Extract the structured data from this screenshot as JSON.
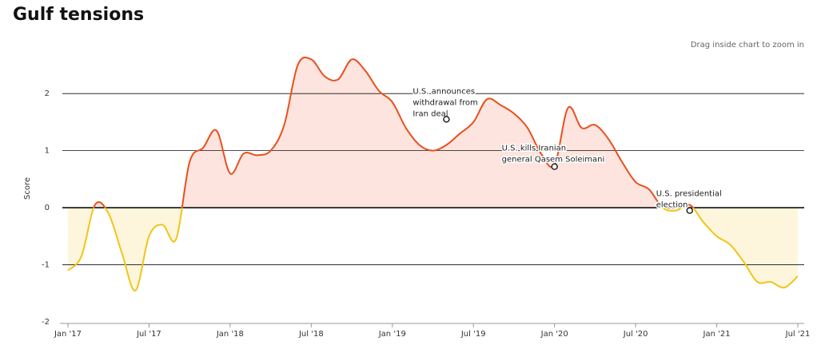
{
  "chart_data": {
    "type": "line",
    "title": "Gulf tensions",
    "subtitle": "Drag inside chart to zoom in",
    "y_label": "Score",
    "x": [
      "2017-01",
      "2017-02",
      "2017-03",
      "2017-04",
      "2017-05",
      "2017-06",
      "2017-07",
      "2017-08",
      "2017-09",
      "2017-10",
      "2017-11",
      "2017-12",
      "2018-01",
      "2018-02",
      "2018-03",
      "2018-04",
      "2018-05",
      "2018-06",
      "2018-07",
      "2018-08",
      "2018-09",
      "2018-10",
      "2018-11",
      "2018-12",
      "2019-01",
      "2019-02",
      "2019-03",
      "2019-04",
      "2019-05",
      "2019-06",
      "2019-07",
      "2019-08",
      "2019-09",
      "2019-10",
      "2019-11",
      "2019-12",
      "2020-01",
      "2020-02",
      "2020-03",
      "2020-04",
      "2020-05",
      "2020-06",
      "2020-07",
      "2020-08",
      "2020-09",
      "2020-10",
      "2020-11",
      "2020-12",
      "2021-01",
      "2021-02",
      "2021-03",
      "2021-04",
      "2021-05",
      "2021-06",
      "2021-07"
    ],
    "series": [
      {
        "name": "Score",
        "color": "#e8501c",
        "negative_color": "#f2c418",
        "fill": "#fde4de",
        "negative_fill": "#fdf6dc",
        "values": [
          -1.1,
          -0.85,
          0.05,
          -0.1,
          -0.8,
          -1.45,
          -0.5,
          -0.3,
          -0.55,
          0.8,
          1.05,
          1.35,
          0.6,
          0.95,
          0.92,
          1.0,
          1.45,
          2.5,
          2.6,
          2.3,
          2.25,
          2.6,
          2.4,
          2.05,
          1.85,
          1.4,
          1.1,
          1.0,
          1.1,
          1.3,
          1.5,
          1.9,
          1.8,
          1.65,
          1.4,
          0.95,
          0.75,
          1.75,
          1.4,
          1.45,
          1.2,
          0.8,
          0.45,
          0.32,
          0.0,
          -0.05,
          0.05,
          -0.25,
          -0.5,
          -0.65,
          -0.95,
          -1.3,
          -1.3,
          -1.4,
          -1.2
        ]
      }
    ],
    "xlim": [
      "2017-01",
      "2021-07"
    ],
    "xticks": [
      {
        "value": "2017-01",
        "label": "Jan '17"
      },
      {
        "value": "2017-07",
        "label": "Jul '17"
      },
      {
        "value": "2018-01",
        "label": "Jan '18"
      },
      {
        "value": "2018-07",
        "label": "Jul '18"
      },
      {
        "value": "2019-01",
        "label": "Jan '19"
      },
      {
        "value": "2019-07",
        "label": "Jul '19"
      },
      {
        "value": "2020-01",
        "label": "Jan '20"
      },
      {
        "value": "2020-07",
        "label": "Jul '20"
      },
      {
        "value": "2021-01",
        "label": "Jan '21"
      },
      {
        "value": "2021-07",
        "label": "Jul '21"
      }
    ],
    "ylim": [
      -2,
      2.8
    ],
    "yticks": [
      -2,
      -1,
      0,
      1,
      2
    ],
    "grid": true,
    "annotations": [
      {
        "lines": [
          "U.S. announces",
          "withdrawal from",
          "Iran deal"
        ],
        "x": "2019-05",
        "y": 1.55
      },
      {
        "lines": [
          "U.S. kills Iranian",
          "general Qasem Soleimani"
        ],
        "x": "2020-01",
        "y": 0.72
      },
      {
        "lines": [
          "U.S. presidential",
          "election"
        ],
        "x": "2020-11",
        "y": -0.05
      }
    ]
  }
}
